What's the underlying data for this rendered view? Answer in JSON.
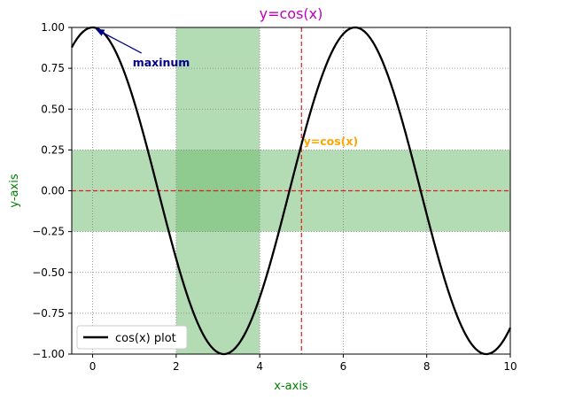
{
  "chart_data": {
    "type": "line",
    "title": "y=cos(x)",
    "xlabel": "x-axis",
    "ylabel": "y-axis",
    "xlim": [
      -0.5,
      10
    ],
    "ylim": [
      -1.0,
      1.0
    ],
    "xticks": [
      0,
      2,
      4,
      6,
      8,
      10
    ],
    "xtick_labels": [
      "0",
      "2",
      "4",
      "6",
      "8",
      "10"
    ],
    "yticks": [
      -1.0,
      -0.75,
      -0.5,
      -0.25,
      0.0,
      0.25,
      0.5,
      0.75,
      1.0
    ],
    "ytick_labels": [
      "−1.00",
      "−0.75",
      "−0.50",
      "−0.25",
      "0.00",
      "0.25",
      "0.50",
      "0.75",
      "1.00"
    ],
    "grid": true,
    "legend_position": "lower-left",
    "series": [
      {
        "name": "cos(x) plot",
        "function": "cos(x)",
        "x_range": [
          -0.5,
          10
        ],
        "color": "#000000"
      }
    ],
    "spans": [
      {
        "orientation": "vertical",
        "from": 2,
        "to": 4,
        "color": "#6ab96a"
      },
      {
        "orientation": "horizontal",
        "from": -0.25,
        "to": 0.25,
        "color": "#6ab96a"
      }
    ],
    "reference_lines": [
      {
        "orientation": "vertical",
        "value": 5,
        "color": "#e31a1c",
        "style": "dashed"
      },
      {
        "orientation": "horizontal",
        "value": 0,
        "color": "#e31a1c",
        "style": "dashed"
      }
    ],
    "annotations": [
      {
        "text": "maxinum",
        "xy": [
          0,
          1.0
        ],
        "xytext": [
          1.0,
          0.8
        ],
        "color": "#00008b",
        "arrow": true
      },
      {
        "text": "y=cos(x)",
        "xy": [
          5.05,
          0.28
        ],
        "color": "#ffa500",
        "arrow": false
      }
    ],
    "colors": {
      "title": "#bf00bf",
      "axis_labels": "#008000",
      "grid": "#808080"
    }
  }
}
